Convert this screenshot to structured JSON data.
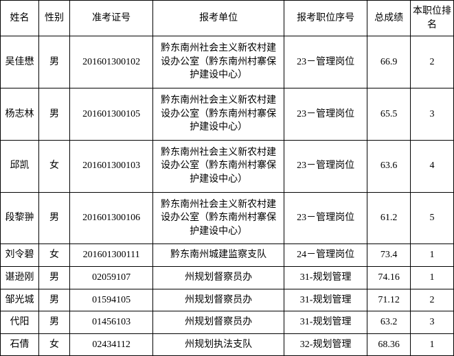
{
  "table": {
    "headers": {
      "name": "姓名",
      "gender": "性别",
      "admit_no": "准考证号",
      "unit": "报考单位",
      "position": "报考职位序号",
      "score": "总成绩",
      "rank": "本职位排名"
    },
    "rows": [
      {
        "name": "吴佳懋",
        "gender": "男",
        "admit_no": "201601300102",
        "unit": "黔东南州社会主义新农村建设办公室（黔东南州村寨保护建设中心）",
        "position": "23－管理岗位",
        "score": "66.9",
        "rank": "2"
      },
      {
        "name": "杨志林",
        "gender": "男",
        "admit_no": "201601300105",
        "unit": "黔东南州社会主义新农村建设办公室（黔东南州村寨保护建设中心）",
        "position": "23－管理岗位",
        "score": "65.5",
        "rank": "3"
      },
      {
        "name": "邱凯",
        "gender": "女",
        "admit_no": "201601300103",
        "unit": "黔东南州社会主义新农村建设办公室（黔东南州村寨保护建设中心）",
        "position": "23－管理岗位",
        "score": "63.6",
        "rank": "4"
      },
      {
        "name": "段黎翀",
        "gender": "男",
        "admit_no": "201601300106",
        "unit": "黔东南州社会主义新农村建设办公室（黔东南州村寨保护建设中心）",
        "position": "23－管理岗位",
        "score": "61.2",
        "rank": "5"
      },
      {
        "name": "刘令碧",
        "gender": "女",
        "admit_no": "201601300111",
        "unit": "黔东南州城建监察支队",
        "position": "24－管理岗位",
        "score": "73.4",
        "rank": "1"
      },
      {
        "name": "谌逊刚",
        "gender": "男",
        "admit_no": "02059107",
        "unit": "州规划督察员办",
        "position": "31-规划管理",
        "score": "74.16",
        "rank": "1"
      },
      {
        "name": "邹光城",
        "gender": "男",
        "admit_no": "01594105",
        "unit": "州规划督察员办",
        "position": "31-规划管理",
        "score": "71.12",
        "rank": "2"
      },
      {
        "name": "代阳",
        "gender": "男",
        "admit_no": "01456103",
        "unit": "州规划督察员办",
        "position": "31-规划管理",
        "score": "63.2",
        "rank": "3"
      },
      {
        "name": "石倩",
        "gender": "女",
        "admit_no": "02434112",
        "unit": "州规划执法支队",
        "position": "32-规划管理",
        "score": "68.36",
        "rank": "1"
      }
    ]
  }
}
